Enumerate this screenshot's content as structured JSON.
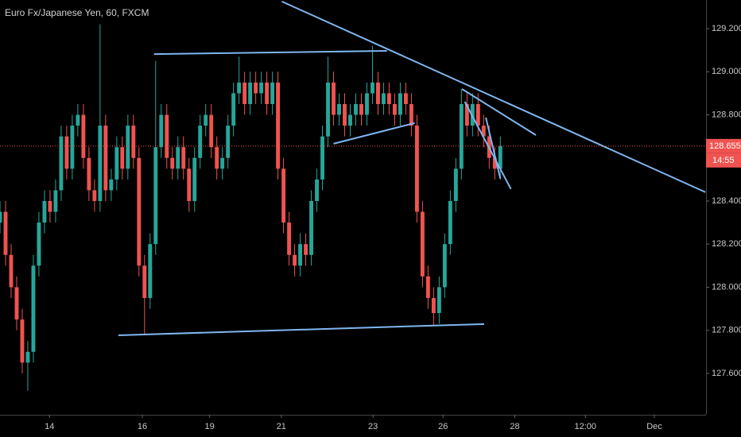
{
  "chart_data": {
    "type": "candlestick",
    "title": "Euro Fx/Japanese Yen, 60, FXCM",
    "up_color": "#26a69a",
    "down_color": "#ef5350",
    "line_color": "#7fb6f0",
    "xlim": [
      0,
      127
    ],
    "ylim": [
      127.408,
      129.333
    ],
    "xticks": [
      {
        "value": 8.9,
        "label": "14"
      },
      {
        "value": 25.6,
        "label": "16"
      },
      {
        "value": 37.7,
        "label": "19"
      },
      {
        "value": 50.6,
        "label": "21"
      },
      {
        "value": 67.1,
        "label": "23"
      },
      {
        "value": 79.7,
        "label": "26"
      },
      {
        "value": 92.6,
        "label": "28"
      },
      {
        "value": 105.3,
        "label": "12:00"
      },
      {
        "value": 117.7,
        "label": "Dec"
      }
    ],
    "yticks": [
      {
        "value": 127.6,
        "label": "127.600"
      },
      {
        "value": 127.8,
        "label": "127.800"
      },
      {
        "value": 128.0,
        "label": "128.000"
      },
      {
        "value": 128.2,
        "label": "128.200"
      },
      {
        "value": 128.4,
        "label": "128.400"
      },
      {
        "value": 128.8,
        "label": "128.800"
      },
      {
        "value": 129.0,
        "label": "129.000"
      },
      {
        "value": 129.2,
        "label": "129.200"
      }
    ],
    "last_price": 128.655,
    "countdown": "14:55",
    "open": [
      128.3,
      128.35,
      128.15,
      128.0,
      127.85,
      127.65,
      127.7,
      128.1,
      128.3,
      128.4,
      128.35,
      128.45,
      128.7,
      128.55,
      128.75,
      128.8,
      128.6,
      128.45,
      128.4,
      128.75,
      128.45,
      128.5,
      128.65,
      128.55,
      128.75,
      128.6,
      128.1,
      127.95,
      128.2,
      128.65,
      128.8,
      128.6,
      128.55,
      128.65,
      128.55,
      128.4,
      128.6,
      128.75,
      128.8,
      128.65,
      128.55,
      128.6,
      128.75,
      128.9,
      128.95,
      128.85,
      128.95,
      128.9,
      128.95,
      128.85,
      128.95,
      128.55,
      128.3,
      128.15,
      128.1,
      128.2,
      128.15,
      128.4,
      128.5,
      128.7,
      128.95,
      128.8,
      128.85,
      128.75,
      128.8,
      128.85,
      128.8,
      128.9,
      128.95,
      128.85,
      128.9,
      128.85,
      128.8,
      128.9,
      128.85,
      128.75,
      128.35,
      128.05,
      127.95,
      127.88,
      128.0,
      128.2,
      128.4,
      128.55,
      128.85,
      128.75,
      128.85,
      128.75,
      128.7,
      128.6,
      128.55
    ],
    "high": [
      128.4,
      128.4,
      128.2,
      128.05,
      127.9,
      127.75,
      128.15,
      128.35,
      128.45,
      128.45,
      128.5,
      128.75,
      128.75,
      128.8,
      128.85,
      128.85,
      128.65,
      128.5,
      129.22,
      128.8,
      128.55,
      128.7,
      128.7,
      128.8,
      128.8,
      128.65,
      128.15,
      128.25,
      129.05,
      128.85,
      128.85,
      128.65,
      128.7,
      128.7,
      128.6,
      128.65,
      128.8,
      128.85,
      128.85,
      128.7,
      128.65,
      128.8,
      128.95,
      129.07,
      129.0,
      129.0,
      129.0,
      129.0,
      129.0,
      129.0,
      129.0,
      128.6,
      128.35,
      128.2,
      128.25,
      128.25,
      128.45,
      128.55,
      128.75,
      129.07,
      129.0,
      128.9,
      128.9,
      128.85,
      128.9,
      128.9,
      128.95,
      129.12,
      129.0,
      128.95,
      128.95,
      128.9,
      128.95,
      128.95,
      128.9,
      128.8,
      128.4,
      128.1,
      128.0,
      128.05,
      128.25,
      128.45,
      128.6,
      128.92,
      128.9,
      128.9,
      128.9,
      128.8,
      128.75,
      128.65,
      128.7
    ],
    "low": [
      128.25,
      128.1,
      127.95,
      127.8,
      127.6,
      127.52,
      127.65,
      128.05,
      128.25,
      128.3,
      128.3,
      128.4,
      128.5,
      128.5,
      128.7,
      128.55,
      128.4,
      128.35,
      128.35,
      128.4,
      128.4,
      128.45,
      128.5,
      128.5,
      128.55,
      128.05,
      127.78,
      127.9,
      128.15,
      128.6,
      128.55,
      128.5,
      128.5,
      128.5,
      128.35,
      128.35,
      128.55,
      128.7,
      128.6,
      128.5,
      128.5,
      128.55,
      128.7,
      128.85,
      128.8,
      128.8,
      128.85,
      128.85,
      128.8,
      128.8,
      128.5,
      128.25,
      128.1,
      128.05,
      128.05,
      128.1,
      128.1,
      128.35,
      128.45,
      128.65,
      128.75,
      128.75,
      128.7,
      128.7,
      128.75,
      128.75,
      128.75,
      128.85,
      128.8,
      128.8,
      128.8,
      128.75,
      128.75,
      128.8,
      128.7,
      128.3,
      128.0,
      127.9,
      127.82,
      127.83,
      127.95,
      128.15,
      128.35,
      128.5,
      128.7,
      128.7,
      128.7,
      128.65,
      128.55,
      128.5,
      128.5
    ],
    "close": [
      128.35,
      128.15,
      128.0,
      127.85,
      127.65,
      127.7,
      128.1,
      128.3,
      128.4,
      128.35,
      128.45,
      128.7,
      128.55,
      128.75,
      128.8,
      128.6,
      128.45,
      128.4,
      128.75,
      128.45,
      128.5,
      128.65,
      128.55,
      128.75,
      128.6,
      128.1,
      127.95,
      128.2,
      128.65,
      128.8,
      128.6,
      128.55,
      128.65,
      128.55,
      128.4,
      128.6,
      128.75,
      128.8,
      128.65,
      128.55,
      128.6,
      128.75,
      128.9,
      128.95,
      128.85,
      128.95,
      128.9,
      128.95,
      128.85,
      128.95,
      128.55,
      128.3,
      128.15,
      128.1,
      128.2,
      128.15,
      128.4,
      128.5,
      128.7,
      128.95,
      128.8,
      128.85,
      128.75,
      128.8,
      128.85,
      128.8,
      128.9,
      128.95,
      128.85,
      128.9,
      128.85,
      128.8,
      128.9,
      128.85,
      128.75,
      128.35,
      128.05,
      127.95,
      127.88,
      128.0,
      128.2,
      128.4,
      128.55,
      128.85,
      128.75,
      128.85,
      128.75,
      128.7,
      128.6,
      128.55,
      128.655
    ],
    "trend_lines": [
      {
        "x1": 27.7,
        "y1": 129.082,
        "x2": 69.6,
        "y2": 129.097
      },
      {
        "x1": 21.3,
        "y1": 127.777,
        "x2": 87.1,
        "y2": 127.829
      },
      {
        "x1": 50.7,
        "y1": 129.326,
        "x2": 126.9,
        "y2": 128.441
      },
      {
        "x1": 83.1,
        "y1": 128.92,
        "x2": 96.4,
        "y2": 128.706
      },
      {
        "x1": 60.0,
        "y1": 128.666,
        "x2": 74.6,
        "y2": 128.762
      },
      {
        "x1": 83.6,
        "y1": 128.861,
        "x2": 91.9,
        "y2": 128.456
      },
      {
        "x1": 87.4,
        "y1": 128.787,
        "x2": 90.0,
        "y2": 128.504
      }
    ]
  }
}
